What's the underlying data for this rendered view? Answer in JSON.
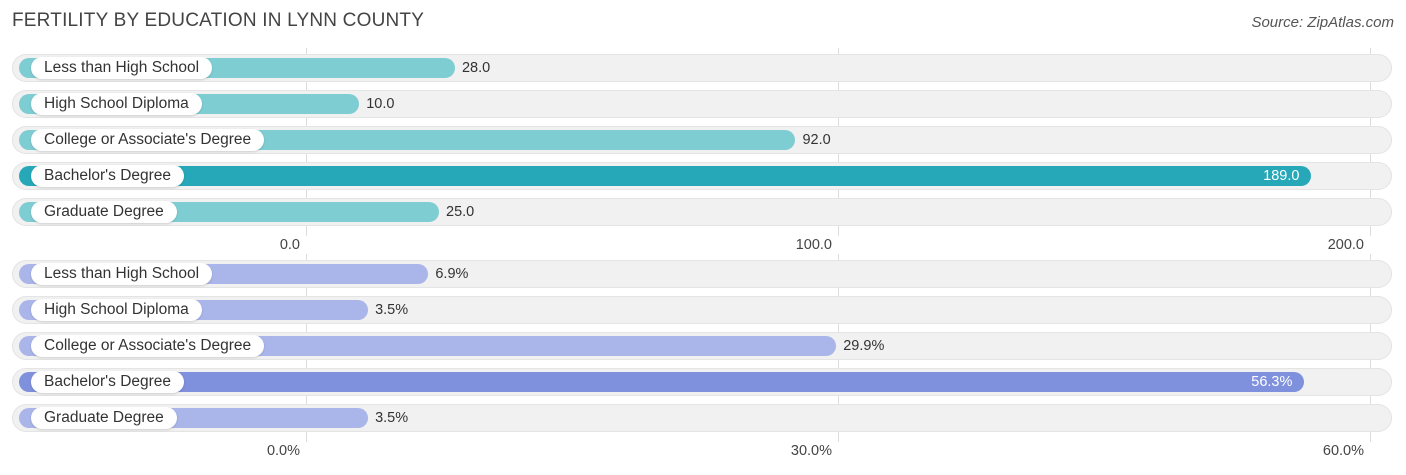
{
  "title": "FERTILITY BY EDUCATION IN LYNN COUNTY",
  "source": "Source: ZipAtlas.com",
  "chart_data": [
    {
      "type": "bar",
      "orientation": "horizontal",
      "categories": [
        "Less than High School",
        "High School Diploma",
        "College or Associate's Degree",
        "Bachelor's Degree",
        "Graduate Degree"
      ],
      "values": [
        28.0,
        10.0,
        92.0,
        189.0,
        25.0
      ],
      "value_labels": [
        "28.0",
        "10.0",
        "92.0",
        "189.0",
        "25.0"
      ],
      "xlim": [
        0,
        200
      ],
      "ticks": [
        0,
        100,
        200
      ],
      "tick_labels": [
        "0.0",
        "100.0",
        "200.0"
      ],
      "highlight_index": 3,
      "colors": {
        "bar": "#7ecdd3",
        "highlight": "#27a8b8"
      }
    },
    {
      "type": "bar",
      "orientation": "horizontal",
      "categories": [
        "Less than High School",
        "High School Diploma",
        "College or Associate's Degree",
        "Bachelor's Degree",
        "Graduate Degree"
      ],
      "values": [
        6.9,
        3.5,
        29.9,
        56.3,
        3.5
      ],
      "value_labels": [
        "6.9%",
        "3.5%",
        "29.9%",
        "56.3%",
        "3.5%"
      ],
      "xlim": [
        0,
        60
      ],
      "ticks": [
        0,
        30,
        60
      ],
      "tick_labels": [
        "0.0%",
        "30.0%",
        "60.0%"
      ],
      "highlight_index": 3,
      "colors": {
        "bar": "#aab5ea",
        "highlight": "#7f90dd"
      }
    }
  ]
}
